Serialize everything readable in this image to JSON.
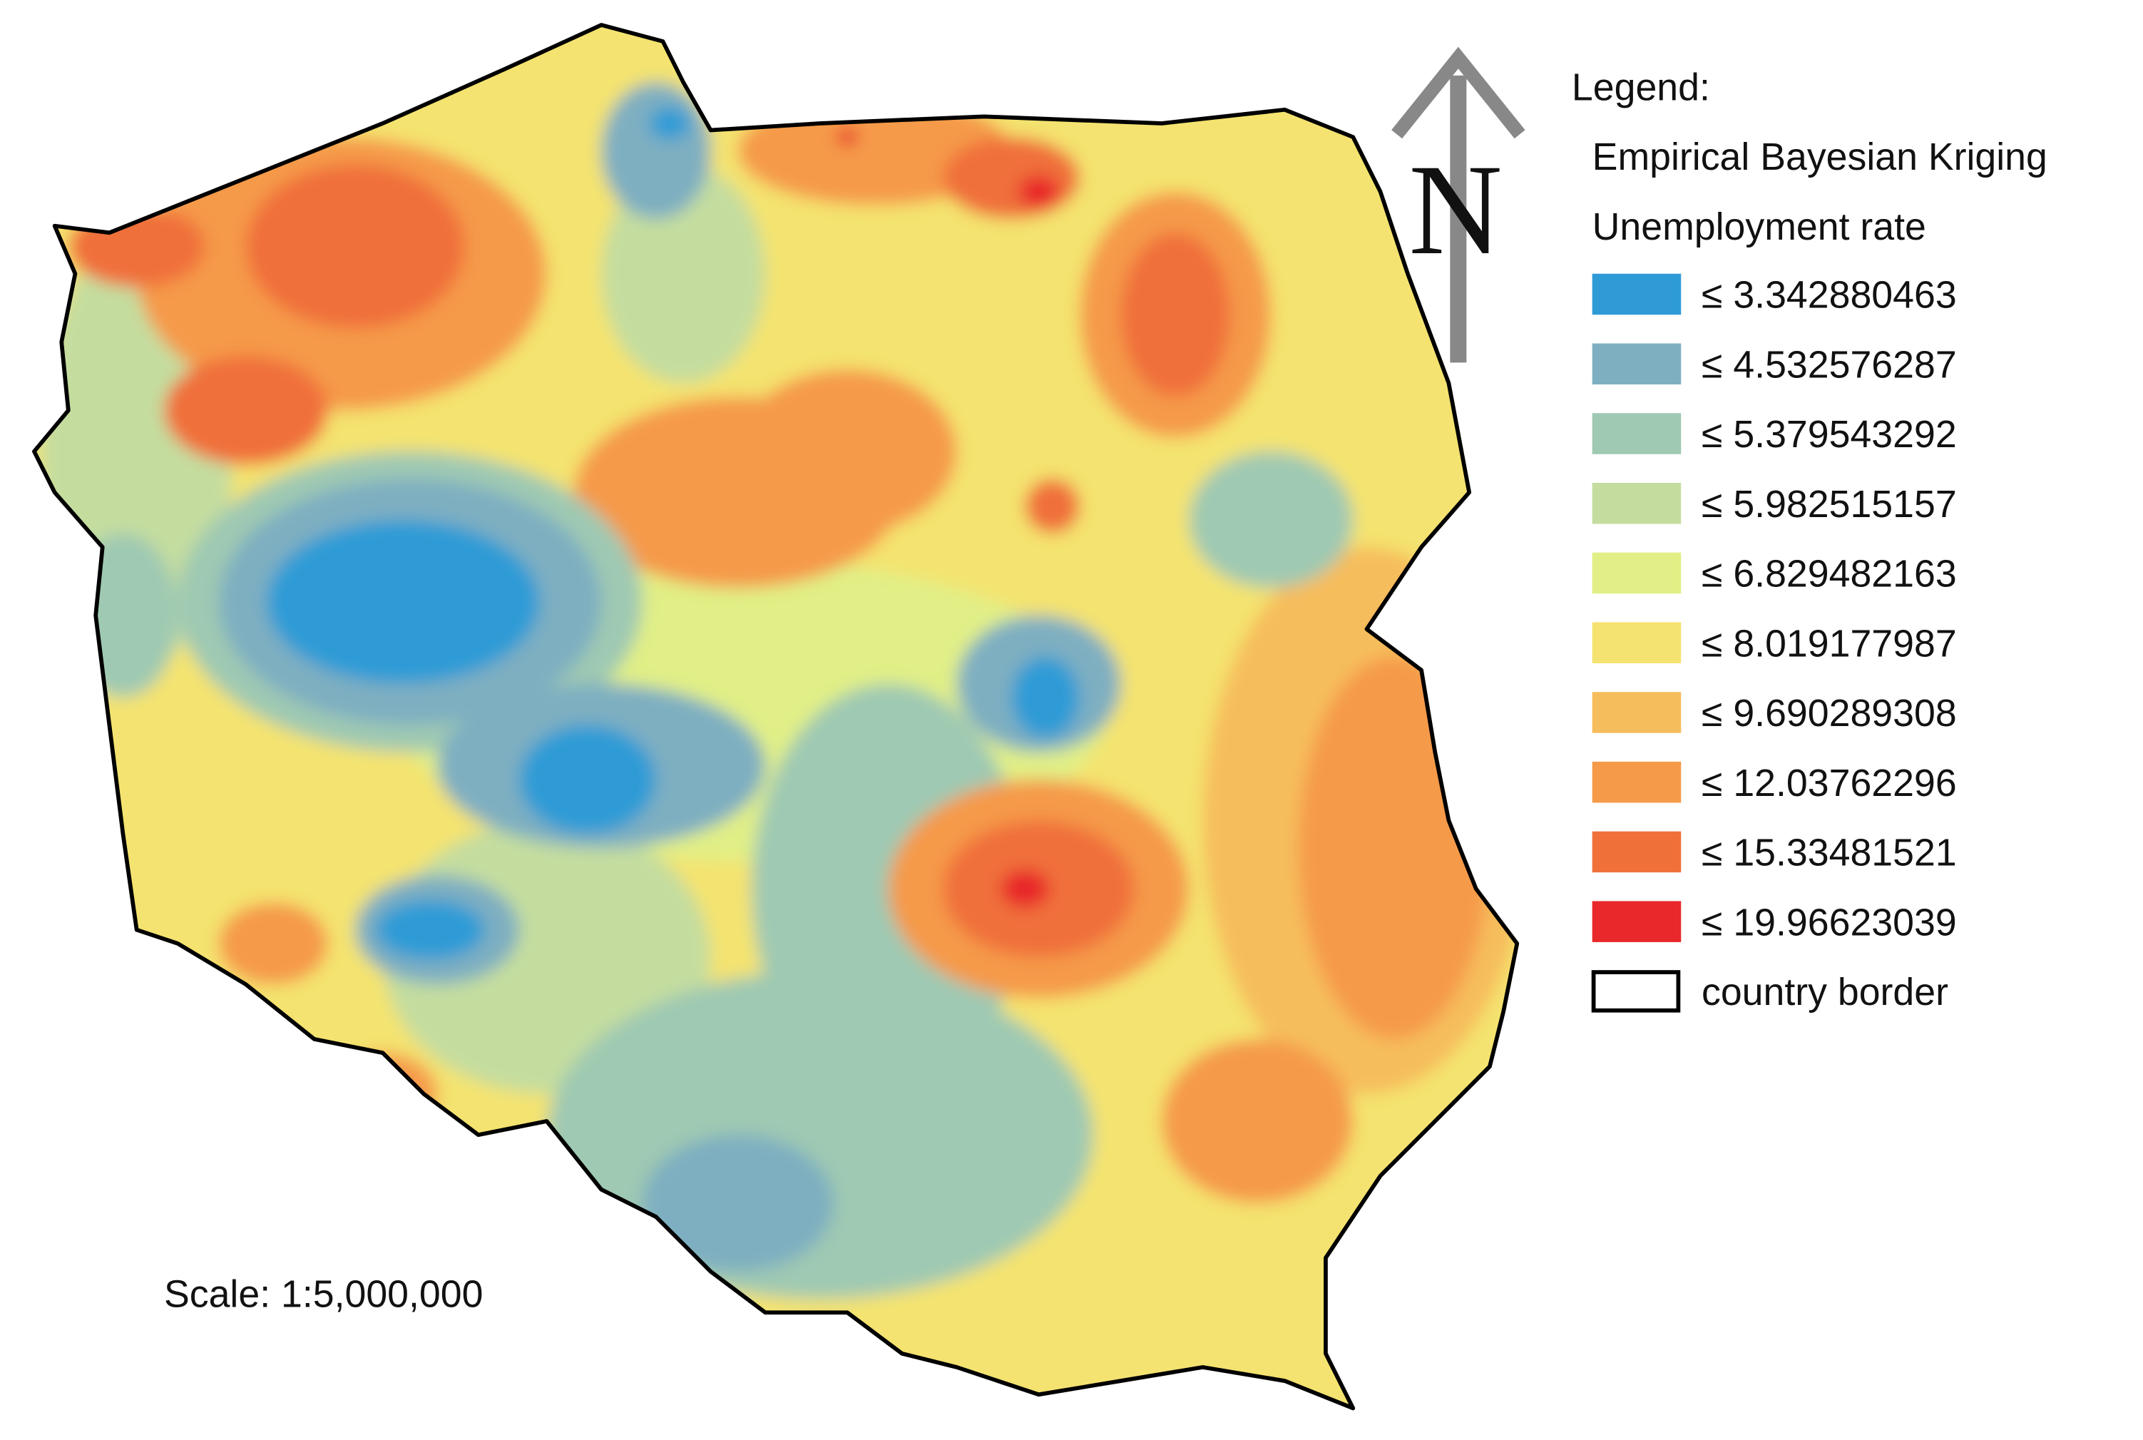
{
  "legend": {
    "title": "Legend:",
    "method": "Empirical Bayesian Kriging",
    "variable": "Unemployment rate",
    "classes": [
      {
        "label": "≤ 3.342880463",
        "color": "#2f9bd6"
      },
      {
        "label": "≤ 4.532576287",
        "color": "#7eafc1"
      },
      {
        "label": "≤ 5.379543292",
        "color": "#9fc9b2"
      },
      {
        "label": "≤ 5.982515157",
        "color": "#c4dd9f"
      },
      {
        "label": "≤ 6.829482163",
        "color": "#e1ef86"
      },
      {
        "label": "≤ 8.019177987",
        "color": "#f4e370"
      },
      {
        "label": "≤ 9.690289308",
        "color": "#f6bd5c"
      },
      {
        "label": "≤ 12.03762296",
        "color": "#f59a48"
      },
      {
        "label": "≤ 15.33481521",
        "color": "#f0703a"
      },
      {
        "label": "≤ 19.96623039",
        "color": "#e8282a"
      }
    ],
    "border": "country border"
  },
  "north": "N",
  "scale": "Scale: 1:5,000,000"
}
